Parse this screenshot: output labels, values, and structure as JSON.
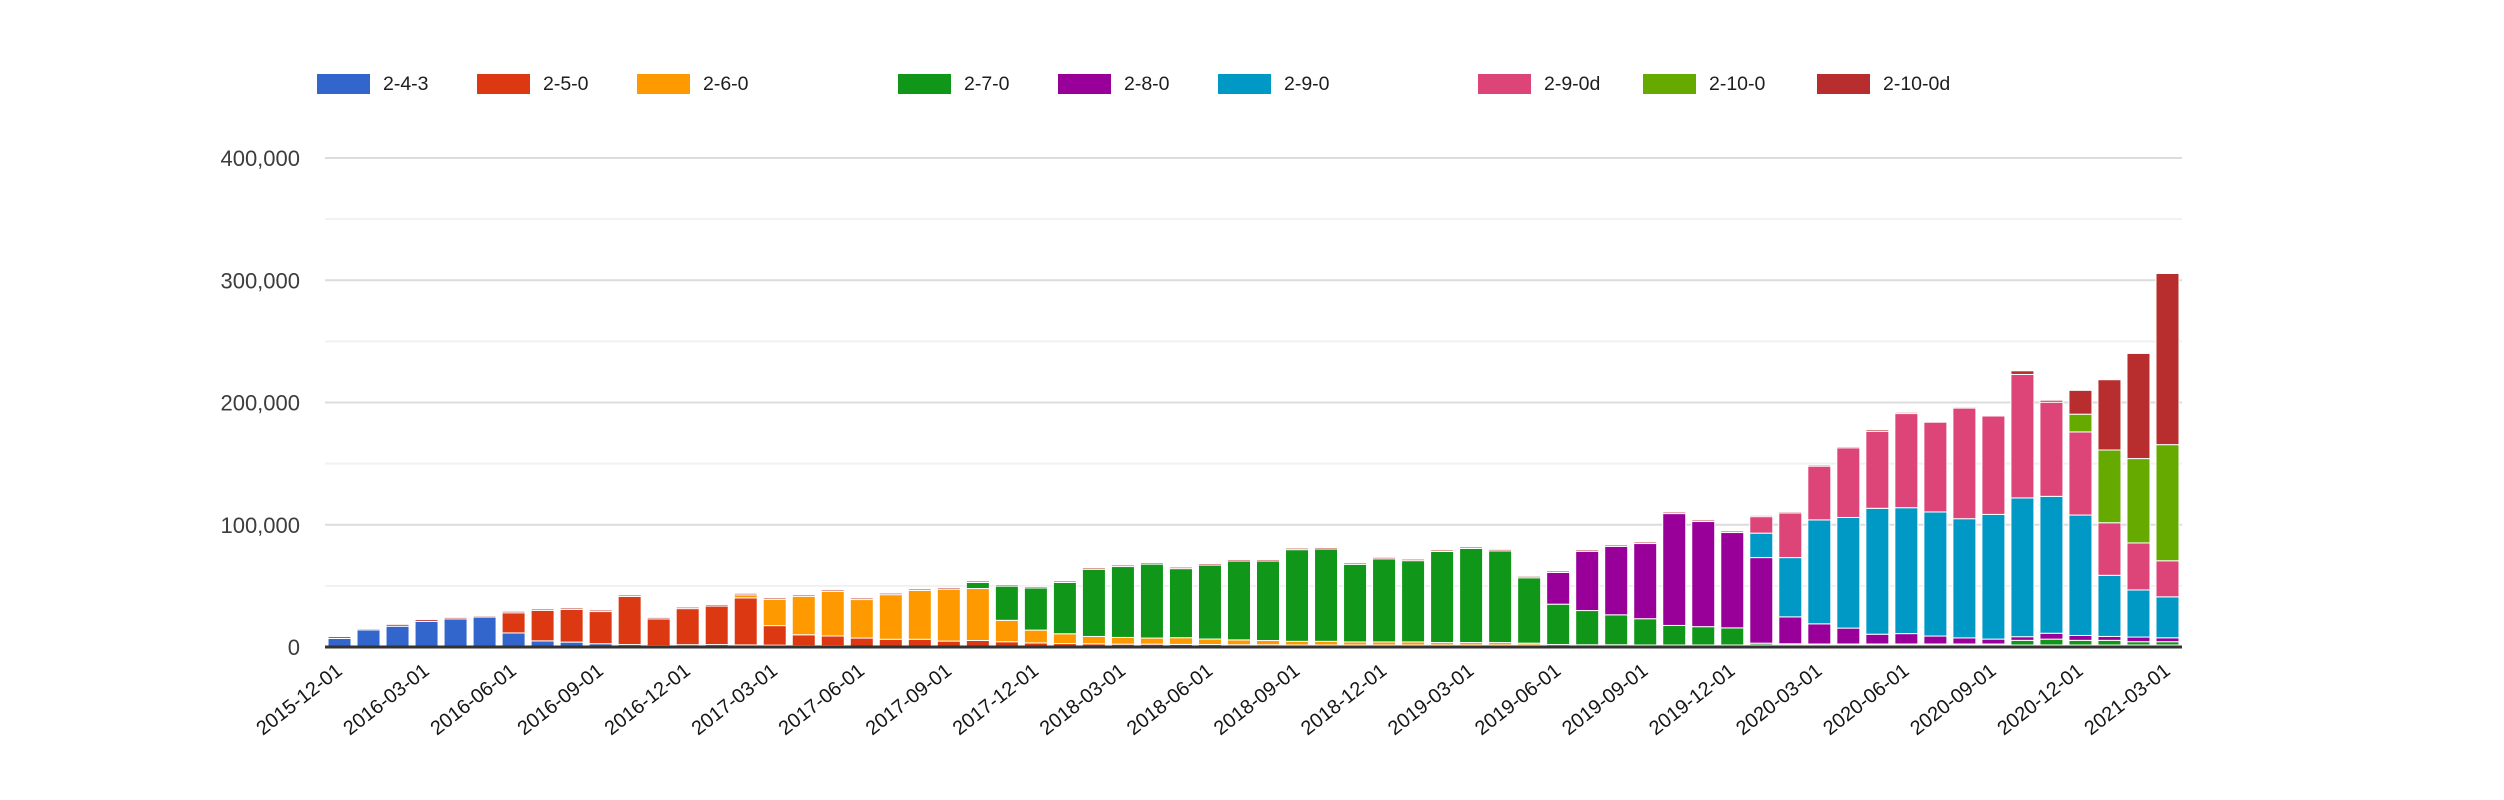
{
  "chart_data": {
    "type": "bar",
    "stacked": true,
    "title": "",
    "xlabel": "",
    "ylabel": "",
    "grid": true,
    "legend_position": "top",
    "background": "#ffffff",
    "y_axis": {
      "min": 0,
      "max": 400000,
      "major_step": 100000,
      "minor_step": 50000,
      "tick_labels": [
        "0",
        "100,000",
        "200,000",
        "300,000",
        "400,000"
      ]
    },
    "x_tick_label_every": 3,
    "x_tick_labels_shown": [
      "2015-12-01",
      "2016-03-01",
      "2016-06-01",
      "2016-09-01",
      "2016-12-01",
      "2017-03-01",
      "2017-06-01",
      "2017-09-01",
      "2017-12-01",
      "2018-03-01",
      "2018-06-01",
      "2018-09-01",
      "2018-12-01",
      "2019-03-01",
      "2019-06-01",
      "2019-09-01",
      "2019-12-01",
      "2020-03-01",
      "2020-06-01",
      "2020-09-01",
      "2020-12-01",
      "2021-03-01"
    ],
    "categories": [
      "2015-12-01",
      "2016-01-01",
      "2016-02-01",
      "2016-03-01",
      "2016-04-01",
      "2016-05-01",
      "2016-06-01",
      "2016-07-01",
      "2016-08-01",
      "2016-09-01",
      "2016-10-01",
      "2016-11-01",
      "2016-12-01",
      "2017-01-01",
      "2017-02-01",
      "2017-03-01",
      "2017-04-01",
      "2017-05-01",
      "2017-06-01",
      "2017-07-01",
      "2017-08-01",
      "2017-09-01",
      "2017-10-01",
      "2017-11-01",
      "2017-12-01",
      "2018-01-01",
      "2018-02-01",
      "2018-03-01",
      "2018-04-01",
      "2018-05-01",
      "2018-06-01",
      "2018-07-01",
      "2018-08-01",
      "2018-09-01",
      "2018-10-01",
      "2018-11-01",
      "2018-12-01",
      "2019-01-01",
      "2019-02-01",
      "2019-03-01",
      "2019-04-01",
      "2019-05-01",
      "2019-06-01",
      "2019-07-01",
      "2019-08-01",
      "2019-09-01",
      "2019-10-01",
      "2019-11-01",
      "2019-12-01",
      "2020-01-01",
      "2020-02-01",
      "2020-03-01",
      "2020-04-01",
      "2020-05-01",
      "2020-06-01",
      "2020-07-01",
      "2020-08-01",
      "2020-09-01",
      "2020-10-01",
      "2020-11-01",
      "2020-12-01",
      "2021-01-01",
      "2021-02-01",
      "2021-03-01"
    ],
    "series": [
      {
        "name": "2-4-3",
        "color": "#3366CC",
        "values": [
          7000,
          14000,
          17000,
          21000,
          23000,
          24500,
          11500,
          5000,
          4000,
          2700,
          2000,
          1000,
          1900,
          2000,
          1700,
          1500,
          1000,
          1000,
          800,
          700,
          600,
          500,
          500,
          400,
          400,
          300,
          200,
          200,
          200,
          150,
          150,
          100,
          100,
          100,
          100,
          100,
          100,
          100,
          100,
          100,
          100,
          100,
          0,
          0,
          0,
          0,
          0,
          0,
          0,
          0,
          0,
          0,
          0,
          0,
          0,
          0,
          0,
          0,
          0,
          0,
          0,
          0,
          0,
          0
        ]
      },
      {
        "name": "2-5-0",
        "color": "#DC3912",
        "values": [
          0,
          0,
          0,
          0,
          0,
          0,
          16500,
          25000,
          26800,
          26300,
          39400,
          22000,
          29500,
          31500,
          38500,
          16000,
          9000,
          8000,
          6500,
          5500,
          5500,
          4000,
          4500,
          3500,
          2500,
          2000,
          1800,
          1500,
          1500,
          1300,
          1200,
          1000,
          1000,
          800,
          800,
          700,
          600,
          600,
          500,
          500,
          500,
          400,
          300,
          300,
          300,
          200,
          200,
          200,
          200,
          200,
          150,
          150,
          150,
          100,
          100,
          100,
          100,
          100,
          100,
          100,
          100,
          100,
          100,
          100
        ]
      },
      {
        "name": "2-6-0",
        "color": "#FF9900",
        "values": [
          0,
          0,
          0,
          0,
          0,
          0,
          0,
          0,
          0,
          0,
          0,
          0,
          0,
          0,
          2500,
          21500,
          31500,
          36500,
          31500,
          36500,
          40000,
          42500,
          42500,
          17500,
          10500,
          8000,
          6000,
          5500,
          5000,
          5500,
          4500,
          4000,
          3500,
          3000,
          3000,
          2500,
          2500,
          2500,
          2000,
          2000,
          2000,
          1500,
          1200,
          1000,
          1000,
          800,
          600,
          500,
          400,
          300,
          300,
          300,
          200,
          200,
          200,
          200,
          200,
          150,
          150,
          150,
          100,
          100,
          100,
          100
        ]
      },
      {
        "name": "2-7-0",
        "color": "#109618",
        "values": [
          0,
          0,
          0,
          0,
          0,
          0,
          0,
          0,
          0,
          0,
          0,
          0,
          0,
          0,
          0,
          0,
          0,
          0,
          0,
          0,
          0,
          0,
          5000,
          28000,
          34500,
          42000,
          55000,
          58000,
          60500,
          56500,
          60500,
          64500,
          65000,
          75000,
          75500,
          63500,
          68000,
          66500,
          74500,
          77000,
          75000,
          53500,
          33000,
          28000,
          24500,
          21500,
          16000,
          15000,
          14000,
          1500,
          1000,
          800,
          600,
          500,
          500,
          400,
          400,
          400,
          3800,
          4800,
          3800,
          3800,
          2700,
          2700
        ]
      },
      {
        "name": "2-8-0",
        "color": "#990099",
        "values": [
          0,
          0,
          0,
          0,
          0,
          0,
          0,
          0,
          0,
          0,
          0,
          0,
          0,
          0,
          0,
          0,
          0,
          0,
          0,
          0,
          0,
          0,
          0,
          0,
          0,
          0,
          0,
          0,
          0,
          0,
          0,
          0,
          0,
          0,
          0,
          0,
          0,
          0,
          0,
          0,
          0,
          0,
          26000,
          48500,
          56000,
          61500,
          91500,
          86000,
          78000,
          70000,
          22000,
          16500,
          13000,
          8000,
          8500,
          6500,
          5000,
          4000,
          3000,
          4800,
          4000,
          3200,
          3800,
          3200
        ]
      },
      {
        "name": "2-9-0",
        "color": "#0099C6",
        "values": [
          0,
          0,
          0,
          0,
          0,
          0,
          0,
          0,
          0,
          0,
          0,
          0,
          0,
          0,
          0,
          0,
          0,
          0,
          0,
          0,
          0,
          0,
          0,
          0,
          0,
          0,
          0,
          0,
          0,
          0,
          0,
          0,
          0,
          0,
          0,
          0,
          0,
          0,
          0,
          0,
          0,
          0,
          0,
          0,
          0,
          0,
          0,
          0,
          0,
          20000,
          48500,
          85000,
          90500,
          103000,
          103000,
          101500,
          97500,
          102000,
          113500,
          112000,
          98500,
          50000,
          38500,
          33500
        ]
      },
      {
        "name": "2-9-0d",
        "color": "#DD4477",
        "values": [
          0,
          0,
          0,
          0,
          0,
          0,
          0,
          0,
          0,
          0,
          0,
          0,
          0,
          0,
          0,
          0,
          0,
          0,
          0,
          0,
          0,
          0,
          0,
          0,
          0,
          0,
          0,
          0,
          0,
          0,
          0,
          0,
          0,
          0,
          0,
          0,
          0,
          0,
          0,
          0,
          0,
          0,
          0,
          0,
          0,
          0,
          0,
          0,
          0,
          13500,
          36500,
          44000,
          57000,
          63000,
          77000,
          73500,
          90500,
          80500,
          101000,
          77000,
          68000,
          43000,
          38500,
          29500
        ]
      },
      {
        "name": "2-10-0",
        "color": "#66AA00",
        "values": [
          0,
          0,
          0,
          0,
          0,
          0,
          0,
          0,
          0,
          0,
          0,
          0,
          0,
          0,
          0,
          0,
          0,
          0,
          0,
          0,
          0,
          0,
          0,
          0,
          0,
          0,
          0,
          0,
          0,
          0,
          0,
          0,
          0,
          0,
          0,
          0,
          0,
          0,
          0,
          0,
          0,
          0,
          0,
          0,
          0,
          0,
          0,
          0,
          0,
          0,
          0,
          0,
          0,
          0,
          0,
          0,
          0,
          0,
          0,
          0,
          14500,
          59500,
          69000,
          95000
        ]
      },
      {
        "name": "2-10-0d",
        "color": "#B82E2E",
        "values": [
          1500,
          1000,
          1500,
          1500,
          1200,
          1000,
          1200,
          1200,
          1200,
          1200,
          1200,
          1200,
          1200,
          1200,
          1200,
          1200,
          1200,
          1200,
          1200,
          1200,
          1200,
          1200,
          1200,
          1200,
          1200,
          1200,
          1200,
          1200,
          1200,
          1200,
          1200,
          1200,
          1200,
          1200,
          1200,
          1200,
          1200,
          1200,
          1200,
          1200,
          1200,
          1200,
          1200,
          1200,
          1200,
          1200,
          1200,
          1200,
          1200,
          1000,
          1000,
          1000,
          1000,
          1300,
          1000,
          800,
          900,
          800,
          3000,
          1600,
          19500,
          57500,
          86000,
          140000
        ]
      }
    ]
  }
}
